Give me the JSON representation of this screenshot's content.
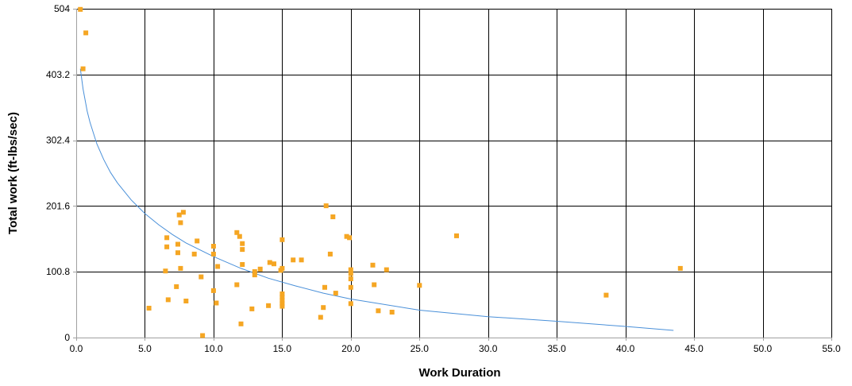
{
  "chart_data": {
    "type": "scatter",
    "xlabel": "Work Duration",
    "ylabel": "Total work (ft-lbs/sec)",
    "xlim": [
      0,
      55
    ],
    "ylim": [
      0,
      504
    ],
    "x_ticks": [
      "0.0",
      "5.0",
      "10.0",
      "15.0",
      "20.0",
      "25.0",
      "30.0",
      "35.0",
      "40.0",
      "45.0",
      "50.0",
      "55.0"
    ],
    "y_ticks": [
      "0",
      "100.8",
      "201.6",
      "302.4",
      "403.2",
      "504"
    ],
    "x_tick_values": [
      0,
      5,
      10,
      15,
      20,
      25,
      30,
      35,
      40,
      45,
      50,
      55
    ],
    "y_tick_values": [
      0,
      100.8,
      201.6,
      302.4,
      403.2,
      504
    ],
    "grid": true,
    "legend": "none",
    "colors": {
      "points": "#F5A623",
      "trend": "#4A90D9",
      "grid": "#000000",
      "axis": "#A0A0A0"
    },
    "series": [
      {
        "kind": "scatter",
        "points": [
          [
            0.3,
            503
          ],
          [
            0.7,
            467
          ],
          [
            0.5,
            412
          ],
          [
            5.3,
            45
          ],
          [
            6.5,
            102
          ],
          [
            6.6,
            153
          ],
          [
            6.6,
            139
          ],
          [
            6.7,
            58
          ],
          [
            7.3,
            78
          ],
          [
            7.4,
            130
          ],
          [
            7.4,
            143
          ],
          [
            7.5,
            188
          ],
          [
            7.6,
            106
          ],
          [
            7.6,
            176
          ],
          [
            7.8,
            192
          ],
          [
            8.0,
            56
          ],
          [
            8.6,
            128
          ],
          [
            8.8,
            148
          ],
          [
            9.1,
            93
          ],
          [
            9.2,
            3
          ],
          [
            10.0,
            72
          ],
          [
            10.0,
            140
          ],
          [
            10.0,
            128
          ],
          [
            10.2,
            53
          ],
          [
            10.3,
            109
          ],
          [
            11.7,
            81
          ],
          [
            11.7,
            161
          ],
          [
            11.9,
            155
          ],
          [
            12.0,
            21
          ],
          [
            12.1,
            112
          ],
          [
            12.1,
            144
          ],
          [
            12.1,
            135
          ],
          [
            12.8,
            44
          ],
          [
            13.0,
            101
          ],
          [
            13.0,
            96
          ],
          [
            13.4,
            105
          ],
          [
            14.0,
            49
          ],
          [
            14.1,
            115
          ],
          [
            14.4,
            113
          ],
          [
            14.9,
            103
          ],
          [
            15.0,
            150
          ],
          [
            15.0,
            106
          ],
          [
            15.0,
            67
          ],
          [
            15.0,
            62
          ],
          [
            15.0,
            57
          ],
          [
            15.0,
            52
          ],
          [
            15.0,
            48
          ],
          [
            15.8,
            119
          ],
          [
            16.4,
            119
          ],
          [
            17.8,
            31
          ],
          [
            18.0,
            46
          ],
          [
            18.1,
            77
          ],
          [
            18.2,
            202
          ],
          [
            18.5,
            128
          ],
          [
            18.7,
            185
          ],
          [
            18.9,
            68
          ],
          [
            19.7,
            155
          ],
          [
            19.9,
            153
          ],
          [
            20.0,
            52
          ],
          [
            20.0,
            77
          ],
          [
            20.0,
            90
          ],
          [
            20.0,
            98
          ],
          [
            20.0,
            104
          ],
          [
            21.6,
            111
          ],
          [
            21.7,
            81
          ],
          [
            22.0,
            41
          ],
          [
            22.6,
            104
          ],
          [
            23.0,
            39
          ],
          [
            25.0,
            80
          ],
          [
            27.7,
            156
          ],
          [
            38.6,
            65
          ],
          [
            44.0,
            106
          ]
        ]
      },
      {
        "kind": "trend-line",
        "points": [
          [
            0.3,
            412
          ],
          [
            0.5,
            381
          ],
          [
            0.8,
            347
          ],
          [
            1.0,
            330
          ],
          [
            1.5,
            297
          ],
          [
            2.0,
            273
          ],
          [
            2.5,
            253
          ],
          [
            3.0,
            237
          ],
          [
            4.0,
            211
          ],
          [
            5.0,
            190
          ],
          [
            6.0,
            173
          ],
          [
            7.0,
            158
          ],
          [
            8.0,
            145
          ],
          [
            10.0,
            124
          ],
          [
            12.0,
            106
          ],
          [
            14.0,
            91
          ],
          [
            16.0,
            79
          ],
          [
            18.0,
            68
          ],
          [
            20.0,
            59
          ],
          [
            25.0,
            42
          ],
          [
            30.0,
            32
          ],
          [
            35.0,
            25
          ],
          [
            40.0,
            17
          ],
          [
            43.5,
            11
          ]
        ]
      }
    ]
  }
}
